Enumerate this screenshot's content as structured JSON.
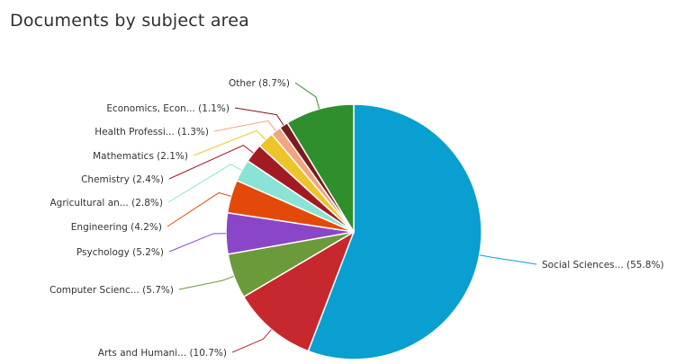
{
  "chart_data": {
    "type": "pie",
    "title": "Documents by subject area",
    "slices": [
      {
        "label": "Social Sciences... (55.8%)",
        "value": 55.8,
        "color": "#0a9fd1"
      },
      {
        "label": "Arts and Humani... (10.7%)",
        "value": 10.7,
        "color": "#c7282d"
      },
      {
        "label": "Computer Scienc... (5.7%)",
        "value": 5.7,
        "color": "#6b9a3a"
      },
      {
        "label": "Psychology (5.2%)",
        "value": 5.2,
        "color": "#8b46c8"
      },
      {
        "label": "Engineering (4.2%)",
        "value": 4.2,
        "color": "#e34a09"
      },
      {
        "label": "Agricultural an... (2.8%)",
        "value": 2.8,
        "color": "#8ae3d4"
      },
      {
        "label": "Chemistry (2.4%)",
        "value": 2.4,
        "color": "#a31b22"
      },
      {
        "label": "Mathematics (2.1%)",
        "value": 2.1,
        "color": "#eec42b"
      },
      {
        "label": "Health Professi... (1.3%)",
        "value": 1.3,
        "color": "#f2a57e"
      },
      {
        "label": "Economics, Econ... (1.1%)",
        "value": 1.1,
        "color": "#7b1b1e"
      },
      {
        "label": "Other (8.7%)",
        "value": 8.7,
        "color": "#2e8f2c"
      }
    ]
  }
}
